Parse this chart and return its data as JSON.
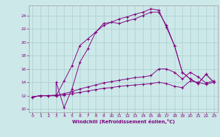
{
  "xlabel": "Windchill (Refroidissement éolien,°C)",
  "bg_color": "#cce8e8",
  "line_color": "#800080",
  "grid_color": "#aacccc",
  "xlim": [
    -0.5,
    23.5
  ],
  "ylim": [
    9.5,
    25.5
  ],
  "xticks": [
    0,
    1,
    2,
    3,
    4,
    5,
    6,
    7,
    8,
    9,
    10,
    11,
    12,
    13,
    14,
    15,
    16,
    17,
    18,
    19,
    20,
    21,
    22,
    23
  ],
  "yticks": [
    10,
    12,
    14,
    16,
    18,
    20,
    22,
    24
  ],
  "series1_x": [
    0,
    1,
    2,
    3,
    3,
    4,
    5,
    6,
    7,
    8,
    9,
    10,
    11,
    12,
    13,
    14,
    15,
    16,
    17,
    18,
    19,
    20,
    21,
    22,
    23
  ],
  "series1_y": [
    11.8,
    12.0,
    12.0,
    12.0,
    14.0,
    10.2,
    13.0,
    17.0,
    19.0,
    21.5,
    22.8,
    23.0,
    23.5,
    23.8,
    24.2,
    24.5,
    25.0,
    24.8,
    22.2,
    19.5,
    15.5,
    14.5,
    13.8,
    15.2,
    14.0
  ],
  "series2_x": [
    0,
    1,
    2,
    3,
    4,
    5,
    6,
    7,
    8,
    9,
    10,
    11,
    12,
    13,
    14,
    15,
    16,
    17,
    18,
    19,
    20,
    21,
    22,
    23
  ],
  "series2_y": [
    11.8,
    12.0,
    12.0,
    12.0,
    14.2,
    16.5,
    19.5,
    20.5,
    21.5,
    22.5,
    23.0,
    22.8,
    23.2,
    23.5,
    24.0,
    24.5,
    24.5,
    22.5,
    19.5,
    15.5,
    14.5,
    13.8,
    15.2,
    14.0
  ],
  "series3_x": [
    0,
    1,
    2,
    3,
    4,
    5,
    6,
    7,
    8,
    9,
    10,
    11,
    12,
    13,
    14,
    15,
    16,
    17,
    18,
    19,
    20,
    21,
    22,
    23
  ],
  "series3_y": [
    11.8,
    12.0,
    12.0,
    12.1,
    12.3,
    12.6,
    13.0,
    13.3,
    13.6,
    13.9,
    14.1,
    14.3,
    14.5,
    14.7,
    14.8,
    15.0,
    16.0,
    16.0,
    15.5,
    14.5,
    15.5,
    14.8,
    13.9,
    14.2
  ],
  "series4_x": [
    0,
    1,
    2,
    3,
    4,
    5,
    6,
    7,
    8,
    9,
    10,
    11,
    12,
    13,
    14,
    15,
    16,
    17,
    18,
    19,
    20,
    21,
    22,
    23
  ],
  "series4_y": [
    11.8,
    12.0,
    12.0,
    12.0,
    12.1,
    12.3,
    12.5,
    12.7,
    12.9,
    13.1,
    13.2,
    13.4,
    13.5,
    13.6,
    13.7,
    13.8,
    14.0,
    13.8,
    13.4,
    13.2,
    14.2,
    14.0,
    13.7,
    14.0
  ]
}
